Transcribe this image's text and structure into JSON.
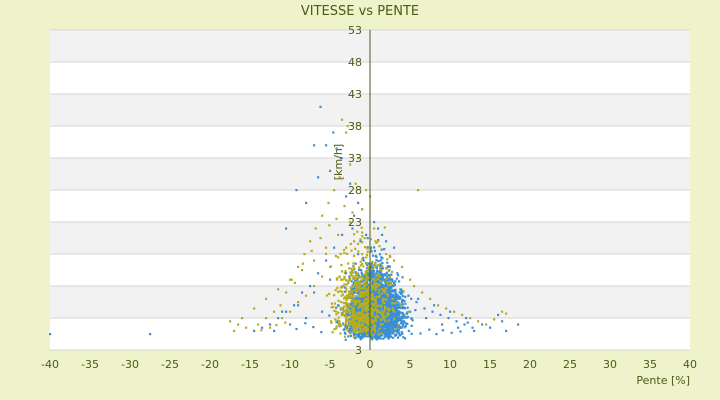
{
  "chart_data": {
    "type": "scatter",
    "title": "VITESSE vs PENTE",
    "xlabel": "Pente [%]",
    "ylabel": "[km/h]",
    "xlim": [
      -40,
      40
    ],
    "ylim": [
      3,
      53
    ],
    "x_ticks": [
      -40,
      -35,
      -30,
      -25,
      -20,
      -15,
      -10,
      -5,
      0,
      5,
      10,
      15,
      20,
      25,
      30,
      35,
      40
    ],
    "y_ticks": [
      3,
      8,
      13,
      18,
      23,
      28,
      33,
      38,
      43,
      48,
      53
    ],
    "y_tick_labels_shown": [
      "53",
      "48",
      "43",
      "38",
      "33",
      "28",
      "23",
      "3"
    ],
    "grid": "horizontal alternating bands",
    "legend": "none",
    "series": [
      {
        "color": "#3a8fd6",
        "points": [
          [
            -40,
            5.5
          ],
          [
            -27.5,
            5.5
          ],
          [
            -6.2,
            41
          ],
          [
            -4.6,
            37
          ],
          [
            -5.5,
            35
          ],
          [
            -7,
            35
          ],
          [
            -4.2,
            34.5
          ],
          [
            -3.6,
            33
          ],
          [
            -9.2,
            28
          ],
          [
            -8,
            26
          ],
          [
            -10.5,
            22
          ],
          [
            -6.5,
            30
          ],
          [
            -5,
            31
          ],
          [
            -2.5,
            29
          ],
          [
            -3,
            27
          ],
          [
            -1.5,
            26
          ],
          [
            -2,
            24
          ],
          [
            -1,
            25
          ],
          [
            0.5,
            23
          ],
          [
            1,
            22
          ],
          [
            1.5,
            21
          ],
          [
            2,
            20
          ],
          [
            3,
            19
          ],
          [
            -0.5,
            21
          ],
          [
            -1.2,
            20
          ],
          [
            -2.2,
            22
          ],
          [
            -3.5,
            21
          ],
          [
            -4.5,
            19
          ],
          [
            -5.5,
            17
          ],
          [
            -6.5,
            15
          ],
          [
            -7.5,
            13
          ],
          [
            -8.5,
            12
          ],
          [
            -9.5,
            10
          ],
          [
            -10.5,
            9
          ],
          [
            -11.5,
            8
          ],
          [
            -12.5,
            7
          ],
          [
            -13.5,
            6.5
          ],
          [
            -14.5,
            6
          ],
          [
            -12,
            6
          ],
          [
            -10,
            7
          ],
          [
            -8,
            8
          ],
          [
            -6,
            9
          ],
          [
            -4,
            10
          ],
          [
            -2,
            12
          ],
          [
            0,
            14
          ],
          [
            2,
            13
          ],
          [
            4,
            12
          ],
          [
            6,
            11
          ],
          [
            8,
            10
          ],
          [
            10,
            9
          ],
          [
            12,
            8
          ],
          [
            14,
            7
          ],
          [
            16,
            8.5
          ],
          [
            16.5,
            7.5
          ],
          [
            18.5,
            7
          ],
          [
            17,
            6
          ],
          [
            15,
            6.5
          ],
          [
            13,
            6
          ],
          [
            11,
            6.5
          ],
          [
            9,
            7
          ],
          [
            7,
            8
          ],
          [
            5,
            9
          ],
          [
            3,
            10
          ],
          [
            1,
            11
          ],
          [
            -1,
            13
          ],
          [
            -3,
            15
          ],
          [
            -5,
            14
          ],
          [
            -7,
            12
          ],
          [
            -9,
            10
          ],
          [
            -11,
            9
          ],
          [
            -1.5,
            18
          ],
          [
            -0.8,
            17
          ],
          [
            0.2,
            16
          ],
          [
            0.8,
            15
          ],
          [
            1.8,
            14
          ],
          [
            2.8,
            13
          ],
          [
            3.8,
            12.5
          ],
          [
            4.8,
            11.5
          ],
          [
            5.8,
            10.5
          ],
          [
            6.8,
            9.5
          ],
          [
            7.8,
            9
          ],
          [
            8.8,
            8.5
          ],
          [
            9.8,
            8
          ],
          [
            10.8,
            7.5
          ],
          [
            11.8,
            7
          ],
          [
            12.8,
            6.5
          ],
          [
            -0.2,
            9
          ],
          [
            0.3,
            8
          ],
          [
            -0.6,
            7
          ],
          [
            1.2,
            6
          ],
          [
            -1.4,
            5.5
          ],
          [
            2.2,
            5
          ],
          [
            -2.4,
            5.2
          ],
          [
            3.2,
            5.4
          ],
          [
            -3.3,
            6.2
          ],
          [
            4.1,
            6.8
          ],
          [
            -4.2,
            7.4
          ],
          [
            5.2,
            7.9
          ],
          [
            -5.1,
            8.4
          ],
          [
            6.3,
            5.6
          ],
          [
            -6.1,
            5.8
          ],
          [
            7.4,
            6.2
          ],
          [
            8.3,
            5.5
          ],
          [
            9.1,
            6.1
          ],
          [
            -7.1,
            6.6
          ],
          [
            -8.1,
            7.2
          ],
          [
            10.2,
            5.7
          ],
          [
            11.3,
            5.9
          ],
          [
            -9.2,
            6.3
          ],
          [
            12.2,
            7.3
          ],
          [
            0.1,
            19
          ],
          [
            -0.3,
            20.5
          ],
          [
            0.6,
            18.5
          ],
          [
            1.4,
            17.5
          ],
          [
            -1.8,
            16.5
          ],
          [
            2.4,
            16
          ],
          [
            -2.6,
            14.5
          ],
          [
            3.4,
            15
          ],
          [
            0.0,
            12
          ],
          [
            0.4,
            10.5
          ],
          [
            -0.9,
            11
          ],
          [
            1.6,
            9.5
          ],
          [
            -1.7,
            9.8
          ],
          [
            2.6,
            8.8
          ],
          [
            -2.8,
            8.6
          ],
          [
            3.6,
            7.8
          ]
        ]
      },
      {
        "color": "#b7ad1e",
        "points": [
          [
            -3.5,
            39
          ],
          [
            -2.8,
            38
          ],
          [
            -3,
            37
          ],
          [
            -1.5,
            33
          ],
          [
            -2.5,
            32
          ],
          [
            -3.8,
            30
          ],
          [
            -4.5,
            28
          ],
          [
            -5.2,
            26
          ],
          [
            -6,
            24
          ],
          [
            -6.8,
            22
          ],
          [
            -7.5,
            20
          ],
          [
            -8.2,
            18
          ],
          [
            -9,
            16
          ],
          [
            -9.8,
            14
          ],
          [
            -10.5,
            12
          ],
          [
            -11.2,
            10
          ],
          [
            -12,
            9
          ],
          [
            -13,
            8
          ],
          [
            -14,
            7
          ],
          [
            -15.5,
            6.5
          ],
          [
            -17,
            6
          ],
          [
            -17.5,
            7.5
          ],
          [
            -16,
            8
          ],
          [
            -14.5,
            9.5
          ],
          [
            -13,
            11
          ],
          [
            -11.5,
            12.5
          ],
          [
            -10,
            14
          ],
          [
            -8.5,
            15.5
          ],
          [
            -7,
            17
          ],
          [
            -5.5,
            19
          ],
          [
            -4,
            21
          ],
          [
            -2.5,
            23
          ],
          [
            -1,
            25
          ],
          [
            0,
            27
          ],
          [
            -0.5,
            28
          ],
          [
            -1.8,
            29
          ],
          [
            0.5,
            22
          ],
          [
            1,
            20
          ],
          [
            2,
            18
          ],
          [
            3,
            17
          ],
          [
            4,
            16
          ],
          [
            5,
            14
          ],
          [
            6,
            28
          ],
          [
            5.5,
            13
          ],
          [
            6.5,
            12
          ],
          [
            7.5,
            11
          ],
          [
            8.5,
            10
          ],
          [
            9.5,
            9.5
          ],
          [
            10.5,
            9
          ],
          [
            11.5,
            8.5
          ],
          [
            12.5,
            8
          ],
          [
            13.5,
            7.5
          ],
          [
            14.5,
            7
          ],
          [
            16.5,
            9
          ],
          [
            17,
            8.7
          ],
          [
            15.5,
            7.8
          ],
          [
            -2,
            20
          ],
          [
            -3,
            19
          ],
          [
            -4,
            17.5
          ],
          [
            -5,
            16
          ],
          [
            -6,
            14.5
          ],
          [
            -7,
            13
          ],
          [
            -8,
            11.5
          ],
          [
            -9,
            10.5
          ],
          [
            -10,
            9
          ],
          [
            -11,
            8
          ],
          [
            -1,
            18
          ],
          [
            -0.2,
            16
          ],
          [
            0.8,
            14
          ],
          [
            1.8,
            12
          ],
          [
            2.8,
            11
          ],
          [
            3.8,
            10
          ],
          [
            4.8,
            9
          ],
          [
            -1.6,
            21.5
          ],
          [
            -2.2,
            24.5
          ],
          [
            -3.2,
            25.5
          ],
          [
            -4.2,
            23.5
          ],
          [
            -5.1,
            22.5
          ],
          [
            -6.2,
            20.5
          ],
          [
            -7.3,
            18.5
          ],
          [
            -8.4,
            16.5
          ],
          [
            -9.4,
            13.5
          ],
          [
            -12.5,
            6.5
          ],
          [
            -13.6,
            6.1
          ],
          [
            -16.5,
            7
          ],
          [
            -10.6,
            7.3
          ],
          [
            -11.7,
            6.9
          ]
        ]
      }
    ]
  }
}
